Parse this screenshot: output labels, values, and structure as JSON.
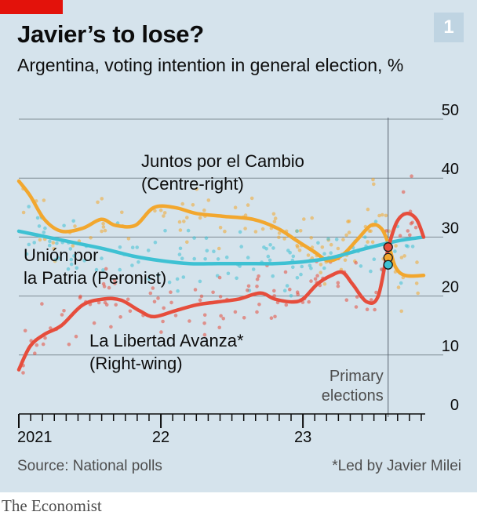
{
  "header": {
    "title": "Javier’s to lose?",
    "subtitle": "Argentina, voting intention in general election, %",
    "badge": "1"
  },
  "footer": {
    "source": "Source: National polls",
    "note": "*Led by Javier Milei"
  },
  "brand": "The Economist",
  "colors": {
    "background": "#d5e3ec",
    "accent_red": "#e3120b",
    "juntos": "#f2a72e",
    "union": "#3ec1d3",
    "libertad": "#e64d3c",
    "gridline": "#7f8c94"
  },
  "chart_data": {
    "type": "line",
    "title": "Javier’s to lose?",
    "subtitle": "Argentina, voting intention in general election, %",
    "y_axis": {
      "ylim": [
        0,
        50
      ],
      "ticks": [
        0,
        10,
        20,
        30,
        40,
        50
      ],
      "position": "right"
    },
    "x_axis": {
      "range": [
        2021.0,
        2023.85
      ],
      "tick_labels": [
        {
          "x": 2021.0,
          "label": "2021"
        },
        {
          "x": 2022.0,
          "label": "22"
        },
        {
          "x": 2023.0,
          "label": "23"
        }
      ]
    },
    "grid": true,
    "annotation": {
      "x": 2023.6,
      "label_lines": [
        "Primary",
        "elections"
      ]
    },
    "series": [
      {
        "key": "juntos",
        "label_lines": [
          "Juntos por el Cambio",
          "(Centre-right)"
        ],
        "color": "#f2a72e",
        "points": [
          [
            2021.0,
            39.5
          ],
          [
            2021.08,
            37
          ],
          [
            2021.18,
            33
          ],
          [
            2021.3,
            31
          ],
          [
            2021.45,
            31.5
          ],
          [
            2021.58,
            33
          ],
          [
            2021.68,
            32
          ],
          [
            2021.82,
            32
          ],
          [
            2021.95,
            35
          ],
          [
            2022.1,
            35
          ],
          [
            2022.25,
            34
          ],
          [
            2022.45,
            33.5
          ],
          [
            2022.65,
            33
          ],
          [
            2022.82,
            31.5
          ],
          [
            2022.95,
            29.5
          ],
          [
            2023.08,
            27.5
          ],
          [
            2023.18,
            26
          ],
          [
            2023.28,
            27
          ],
          [
            2023.38,
            29.5
          ],
          [
            2023.48,
            32
          ],
          [
            2023.55,
            31.5
          ],
          [
            2023.6,
            29
          ],
          [
            2023.65,
            25
          ],
          [
            2023.72,
            23.5
          ],
          [
            2023.85,
            23.5
          ]
        ]
      },
      {
        "key": "union",
        "label_lines": [
          "Unión por",
          "la Patria (Peronist)"
        ],
        "color": "#3ec1d3",
        "points": [
          [
            2021.0,
            31
          ],
          [
            2021.2,
            30
          ],
          [
            2021.4,
            29
          ],
          [
            2021.6,
            28
          ],
          [
            2021.8,
            26.8
          ],
          [
            2022.0,
            26
          ],
          [
            2022.2,
            25.5
          ],
          [
            2022.4,
            25.5
          ],
          [
            2022.6,
            25.5
          ],
          [
            2022.8,
            25.5
          ],
          [
            2023.0,
            25.8
          ],
          [
            2023.2,
            26.5
          ],
          [
            2023.4,
            27.8
          ],
          [
            2023.6,
            29
          ],
          [
            2023.7,
            29.5
          ],
          [
            2023.85,
            30
          ]
        ]
      },
      {
        "key": "libertad",
        "label_lines": [
          "La Libertad Avanza*",
          "(Right-wing)"
        ],
        "color": "#e64d3c",
        "points": [
          [
            2021.0,
            7.5
          ],
          [
            2021.08,
            11.5
          ],
          [
            2021.18,
            13.5
          ],
          [
            2021.3,
            15
          ],
          [
            2021.45,
            18.5
          ],
          [
            2021.6,
            19.5
          ],
          [
            2021.72,
            19.3
          ],
          [
            2021.85,
            17.5
          ],
          [
            2021.95,
            16.5
          ],
          [
            2022.1,
            17.5
          ],
          [
            2022.25,
            18.5
          ],
          [
            2022.4,
            19
          ],
          [
            2022.55,
            19.5
          ],
          [
            2022.7,
            20.5
          ],
          [
            2022.8,
            19.5
          ],
          [
            2022.92,
            19
          ],
          [
            2023.0,
            19.5
          ],
          [
            2023.1,
            22
          ],
          [
            2023.2,
            23.5
          ],
          [
            2023.28,
            24
          ],
          [
            2023.35,
            22
          ],
          [
            2023.45,
            19
          ],
          [
            2023.53,
            20
          ],
          [
            2023.6,
            28
          ],
          [
            2023.66,
            32.5
          ],
          [
            2023.73,
            34
          ],
          [
            2023.8,
            33
          ],
          [
            2023.85,
            30
          ]
        ]
      }
    ],
    "primary_results": [
      {
        "key": "libertad",
        "value": 28.3
      },
      {
        "key": "juntos",
        "value": 26.5
      },
      {
        "key": "union",
        "value": 25.3
      }
    ]
  }
}
